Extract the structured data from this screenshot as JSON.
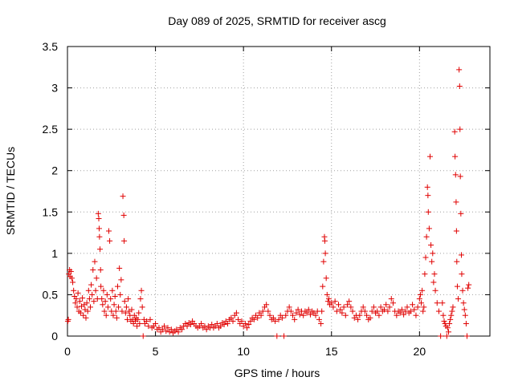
{
  "chart_data": {
    "type": "scatter",
    "title": "Day 089 of 2025, SRMTID for receiver ascg",
    "xlabel": "GPS time / hours",
    "ylabel": "SRMTID / TECUs",
    "xlim": [
      0,
      24
    ],
    "ylim": [
      0,
      3.5
    ],
    "x_ticks": [
      0,
      5,
      10,
      15,
      20
    ],
    "x_tick_labels": [
      "0",
      "5",
      "10",
      "15",
      "20"
    ],
    "y_ticks": [
      0,
      0.5,
      1,
      1.5,
      2,
      2.5,
      3,
      3.5
    ],
    "y_tick_labels": [
      "0",
      "0.5",
      "1",
      "1.5",
      "2",
      "2.5",
      "3",
      "3.5"
    ],
    "grid": true,
    "marker": "+",
    "marker_color": "#e00000",
    "series": [
      {
        "name": "SRMTID",
        "points": [
          [
            0.02,
            0.18
          ],
          [
            0.05,
            0.2
          ],
          [
            0.08,
            0.75
          ],
          [
            0.12,
            0.8
          ],
          [
            0.15,
            0.72
          ],
          [
            0.2,
            0.78
          ],
          [
            0.25,
            0.7
          ],
          [
            0.3,
            0.65
          ],
          [
            0.35,
            0.55
          ],
          [
            0.4,
            0.48
          ],
          [
            0.45,
            0.4
          ],
          [
            0.5,
            0.45
          ],
          [
            0.55,
            0.35
          ],
          [
            0.6,
            0.52
          ],
          [
            0.65,
            0.3
          ],
          [
            0.7,
            0.42
          ],
          [
            0.75,
            0.28
          ],
          [
            0.8,
            0.36
          ],
          [
            0.85,
            0.46
          ],
          [
            0.9,
            0.25
          ],
          [
            0.95,
            0.38
          ],
          [
            1.0,
            0.32
          ],
          [
            1.05,
            0.22
          ],
          [
            1.1,
            0.4
          ],
          [
            1.15,
            0.3
          ],
          [
            1.2,
            0.55
          ],
          [
            1.25,
            0.45
          ],
          [
            1.3,
            0.35
          ],
          [
            1.35,
            0.62
          ],
          [
            1.4,
            0.5
          ],
          [
            1.45,
            0.8
          ],
          [
            1.5,
            0.42
          ],
          [
            1.55,
            0.9
          ],
          [
            1.6,
            0.55
          ],
          [
            1.65,
            0.7
          ],
          [
            1.7,
            0.45
          ],
          [
            1.75,
            1.48
          ],
          [
            1.78,
            1.42
          ],
          [
            1.8,
            1.3
          ],
          [
            1.82,
            1.2
          ],
          [
            1.85,
            1.05
          ],
          [
            1.88,
            0.8
          ],
          [
            1.9,
            0.6
          ],
          [
            1.95,
            0.45
          ],
          [
            2.0,
            0.38
          ],
          [
            2.05,
            0.55
          ],
          [
            2.1,
            0.3
          ],
          [
            2.15,
            0.42
          ],
          [
            2.2,
            0.25
          ],
          [
            2.25,
            0.5
          ],
          [
            2.3,
            0.35
          ],
          [
            2.35,
            1.27
          ],
          [
            2.4,
            1.15
          ],
          [
            2.45,
            0.45
          ],
          [
            2.5,
            0.3
          ],
          [
            2.55,
            0.55
          ],
          [
            2.6,
            0.25
          ],
          [
            2.65,
            0.38
          ],
          [
            2.7,
            0.48
          ],
          [
            2.75,
            0.3
          ],
          [
            2.8,
            0.22
          ],
          [
            2.85,
            0.6
          ],
          [
            2.9,
            0.35
          ],
          [
            2.95,
            0.82
          ],
          [
            3.0,
            0.5
          ],
          [
            3.05,
            0.68
          ],
          [
            3.1,
            0.3
          ],
          [
            3.15,
            1.69
          ],
          [
            3.2,
            1.46
          ],
          [
            3.22,
            1.15
          ],
          [
            3.25,
            0.42
          ],
          [
            3.3,
            0.28
          ],
          [
            3.35,
            0.35
          ],
          [
            3.4,
            0.2
          ],
          [
            3.45,
            0.45
          ],
          [
            3.5,
            0.3
          ],
          [
            3.55,
            0.25
          ],
          [
            3.6,
            0.18
          ],
          [
            3.65,
            0.32
          ],
          [
            3.7,
            0.2
          ],
          [
            3.75,
            0.15
          ],
          [
            3.8,
            0.25
          ],
          [
            3.85,
            0.18
          ],
          [
            3.9,
            0.22
          ],
          [
            3.95,
            0.12
          ],
          [
            4.0,
            0.2
          ],
          [
            4.05,
            0.28
          ],
          [
            4.1,
            0.15
          ],
          [
            4.15,
            0.45
          ],
          [
            4.2,
            0.55
          ],
          [
            4.25,
            0.35
          ],
          [
            4.3,
            0.0
          ],
          [
            4.35,
            0.2
          ],
          [
            4.4,
            0.15
          ],
          [
            4.5,
            0.18
          ],
          [
            4.6,
            0.12
          ],
          [
            4.7,
            0.2
          ],
          [
            4.8,
            0.1
          ],
          [
            4.9,
            0.12
          ],
          [
            5.0,
            0.15
          ],
          [
            5.1,
            0.08
          ],
          [
            5.2,
            0.1
          ],
          [
            5.3,
            0.05
          ],
          [
            5.4,
            0.08
          ],
          [
            5.5,
            0.12
          ],
          [
            5.6,
            0.06
          ],
          [
            5.7,
            0.1
          ],
          [
            5.8,
            0.05
          ],
          [
            5.9,
            0.08
          ],
          [
            6.0,
            0.04
          ],
          [
            6.1,
            0.06
          ],
          [
            6.2,
            0.08
          ],
          [
            6.3,
            0.05
          ],
          [
            6.4,
            0.1
          ],
          [
            6.5,
            0.08
          ],
          [
            6.6,
            0.12
          ],
          [
            6.7,
            0.15
          ],
          [
            6.8,
            0.12
          ],
          [
            6.9,
            0.16
          ],
          [
            7.0,
            0.14
          ],
          [
            7.1,
            0.18
          ],
          [
            7.2,
            0.15
          ],
          [
            7.3,
            0.12
          ],
          [
            7.4,
            0.1
          ],
          [
            7.5,
            0.12
          ],
          [
            7.6,
            0.15
          ],
          [
            7.7,
            0.1
          ],
          [
            7.8,
            0.12
          ],
          [
            7.9,
            0.08
          ],
          [
            8.0,
            0.12
          ],
          [
            8.1,
            0.1
          ],
          [
            8.2,
            0.14
          ],
          [
            8.3,
            0.1
          ],
          [
            8.4,
            0.12
          ],
          [
            8.5,
            0.15
          ],
          [
            8.6,
            0.1
          ],
          [
            8.7,
            0.12
          ],
          [
            8.8,
            0.16
          ],
          [
            8.9,
            0.14
          ],
          [
            9.0,
            0.18
          ],
          [
            9.1,
            0.15
          ],
          [
            9.2,
            0.2
          ],
          [
            9.3,
            0.22
          ],
          [
            9.4,
            0.18
          ],
          [
            9.5,
            0.25
          ],
          [
            9.6,
            0.28
          ],
          [
            9.7,
            0.2
          ],
          [
            9.8,
            0.15
          ],
          [
            9.9,
            0.18
          ],
          [
            10.0,
            0.12
          ],
          [
            10.1,
            0.15
          ],
          [
            10.2,
            0.1
          ],
          [
            10.3,
            0.14
          ],
          [
            10.4,
            0.18
          ],
          [
            10.5,
            0.22
          ],
          [
            10.6,
            0.2
          ],
          [
            10.7,
            0.25
          ],
          [
            10.8,
            0.22
          ],
          [
            10.9,
            0.28
          ],
          [
            11.0,
            0.25
          ],
          [
            11.1,
            0.3
          ],
          [
            11.2,
            0.35
          ],
          [
            11.3,
            0.38
          ],
          [
            11.4,
            0.3
          ],
          [
            11.5,
            0.25
          ],
          [
            11.6,
            0.2
          ],
          [
            11.7,
            0.22
          ],
          [
            11.8,
            0.18
          ],
          [
            11.9,
            0.0
          ],
          [
            12.0,
            0.2
          ],
          [
            12.1,
            0.25
          ],
          [
            12.2,
            0.22
          ],
          [
            12.3,
            0.0
          ],
          [
            12.4,
            0.25
          ],
          [
            12.5,
            0.3
          ],
          [
            12.6,
            0.35
          ],
          [
            12.7,
            0.3
          ],
          [
            12.8,
            0.25
          ],
          [
            12.9,
            0.2
          ],
          [
            13.0,
            0.28
          ],
          [
            13.1,
            0.32
          ],
          [
            13.2,
            0.26
          ],
          [
            13.3,
            0.3
          ],
          [
            13.4,
            0.25
          ],
          [
            13.5,
            0.3
          ],
          [
            13.6,
            0.28
          ],
          [
            13.7,
            0.32
          ],
          [
            13.8,
            0.26
          ],
          [
            13.9,
            0.3
          ],
          [
            14.0,
            0.28
          ],
          [
            14.1,
            0.25
          ],
          [
            14.2,
            0.3
          ],
          [
            14.3,
            0.2
          ],
          [
            14.4,
            0.15
          ],
          [
            14.45,
            0.3
          ],
          [
            14.5,
            0.6
          ],
          [
            14.55,
            0.9
          ],
          [
            14.6,
            1.2
          ],
          [
            14.62,
            1.15
          ],
          [
            14.65,
            1.0
          ],
          [
            14.7,
            0.7
          ],
          [
            14.75,
            0.5
          ],
          [
            14.8,
            0.42
          ],
          [
            14.85,
            0.45
          ],
          [
            14.9,
            0.38
          ],
          [
            15.0,
            0.4
          ],
          [
            15.1,
            0.35
          ],
          [
            15.2,
            0.42
          ],
          [
            15.3,
            0.3
          ],
          [
            15.4,
            0.38
          ],
          [
            15.5,
            0.32
          ],
          [
            15.6,
            0.28
          ],
          [
            15.7,
            0.35
          ],
          [
            15.8,
            0.25
          ],
          [
            15.9,
            0.38
          ],
          [
            16.0,
            0.42
          ],
          [
            16.1,
            0.35
          ],
          [
            16.2,
            0.3
          ],
          [
            16.3,
            0.22
          ],
          [
            16.4,
            0.25
          ],
          [
            16.5,
            0.2
          ],
          [
            16.6,
            0.25
          ],
          [
            16.7,
            0.3
          ],
          [
            16.8,
            0.35
          ],
          [
            16.9,
            0.3
          ],
          [
            17.0,
            0.25
          ],
          [
            17.1,
            0.2
          ],
          [
            17.2,
            0.22
          ],
          [
            17.3,
            0.3
          ],
          [
            17.4,
            0.35
          ],
          [
            17.5,
            0.28
          ],
          [
            17.6,
            0.3
          ],
          [
            17.7,
            0.25
          ],
          [
            17.8,
            0.35
          ],
          [
            17.9,
            0.3
          ],
          [
            18.0,
            0.32
          ],
          [
            18.1,
            0.38
          ],
          [
            18.2,
            0.3
          ],
          [
            18.3,
            0.35
          ],
          [
            18.4,
            0.45
          ],
          [
            18.5,
            0.4
          ],
          [
            18.6,
            0.3
          ],
          [
            18.7,
            0.25
          ],
          [
            18.8,
            0.3
          ],
          [
            18.9,
            0.28
          ],
          [
            19.0,
            0.32
          ],
          [
            19.1,
            0.26
          ],
          [
            19.2,
            0.3
          ],
          [
            19.3,
            0.35
          ],
          [
            19.4,
            0.28
          ],
          [
            19.5,
            0.3
          ],
          [
            19.6,
            0.38
          ],
          [
            19.7,
            0.32
          ],
          [
            19.8,
            0.25
          ],
          [
            19.9,
            0.35
          ],
          [
            20.0,
            0.45
          ],
          [
            20.05,
            0.5
          ],
          [
            20.1,
            0.4
          ],
          [
            20.15,
            0.55
          ],
          [
            20.2,
            0.3
          ],
          [
            20.25,
            0.35
          ],
          [
            20.3,
            0.75
          ],
          [
            20.35,
            0.95
          ],
          [
            20.4,
            1.2
          ],
          [
            20.45,
            1.8
          ],
          [
            20.48,
            1.7
          ],
          [
            20.5,
            1.5
          ],
          [
            20.55,
            1.3
          ],
          [
            20.6,
            2.17
          ],
          [
            20.65,
            1.1
          ],
          [
            20.7,
            0.9
          ],
          [
            20.75,
            1.0
          ],
          [
            20.8,
            0.65
          ],
          [
            20.85,
            0.75
          ],
          [
            20.9,
            0.55
          ],
          [
            21.0,
            0.4
          ],
          [
            21.1,
            0.3
          ],
          [
            21.2,
            0.0
          ],
          [
            21.3,
            0.4
          ],
          [
            21.35,
            0.25
          ],
          [
            21.4,
            0.18
          ],
          [
            21.45,
            0.15
          ],
          [
            21.5,
            0.12
          ],
          [
            21.55,
            0.0
          ],
          [
            21.6,
            0.1
          ],
          [
            21.65,
            0.05
          ],
          [
            21.7,
            0.15
          ],
          [
            21.75,
            0.2
          ],
          [
            21.8,
            0.25
          ],
          [
            21.85,
            0.3
          ],
          [
            21.9,
            0.35
          ],
          [
            22.0,
            2.47
          ],
          [
            22.02,
            2.17
          ],
          [
            22.05,
            1.95
          ],
          [
            22.08,
            1.62
          ],
          [
            22.1,
            1.27
          ],
          [
            22.12,
            0.9
          ],
          [
            22.15,
            0.6
          ],
          [
            22.2,
            0.45
          ],
          [
            22.25,
            3.22
          ],
          [
            22.28,
            3.02
          ],
          [
            22.3,
            2.5
          ],
          [
            22.32,
            1.93
          ],
          [
            22.35,
            1.48
          ],
          [
            22.38,
            0.98
          ],
          [
            22.4,
            0.75
          ],
          [
            22.45,
            0.55
          ],
          [
            22.5,
            0.4
          ],
          [
            22.55,
            0.32
          ],
          [
            22.6,
            0.25
          ],
          [
            22.65,
            0.15
          ],
          [
            22.7,
            0.0
          ],
          [
            22.75,
            0.58
          ],
          [
            22.8,
            0.62
          ]
        ]
      }
    ]
  }
}
